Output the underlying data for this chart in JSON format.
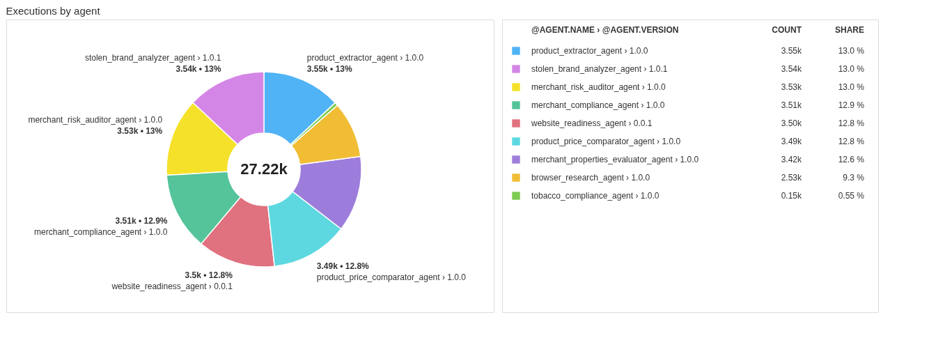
{
  "chart_data": {
    "type": "donut",
    "title": "Executions by agent",
    "legend_title": "@AGENT.NAME › @AGENT.VERSION",
    "legend": "right",
    "categories": [
      "product_extractor_agent › 1.0.0",
      "stolen_brand_analyzer_agent › 1.0.1",
      "merchant_risk_auditor_agent › 1.0.0",
      "merchant_compliance_agent › 1.0.0",
      "website_readiness_agent › 0.0.1",
      "product_price_comparator_agent › 1.0.0",
      "merchant_properties_evaluator_agent › 1.0.0",
      "browser_research_agent › 1.0.0",
      "tobacco_compliance_agent › 1.0.0"
    ],
    "values": [
      3550,
      3540,
      3530,
      3510,
      3500,
      3490,
      3420,
      2530,
      150
    ],
    "colors": [
      "#4fb3f6",
      "#d486e6",
      "#f5e12a",
      "#55c49a",
      "#e0717f",
      "#5dd8e0",
      "#9d7ddb",
      "#f0bd35",
      "#7ccc52"
    ],
    "value_labels": [
      "3.55k • 13%",
      "3.54k • 13%",
      "3.53k • 13%",
      "3.51k • 12.9%",
      "3.5k • 12.8%",
      "3.49k • 12.8%",
      null,
      null,
      null
    ],
    "annotations": [
      "27.22k",
      "COUNT",
      "SHARE",
      "3.55k",
      "3.54k",
      "3.53k",
      "3.51k",
      "3.50k",
      "3.49k",
      "3.42k",
      "2.53k",
      "0.15k",
      "13.0 %",
      "13.0 %",
      "13.0 %",
      "12.9 %",
      "12.8 %",
      "12.8 %",
      "12.6 %",
      "9.3 %",
      "0.55 %"
    ]
  }
}
